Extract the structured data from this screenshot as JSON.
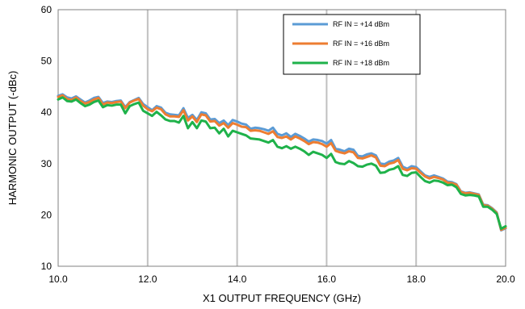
{
  "chart_data": {
    "type": "line",
    "title": "",
    "xlabel": "X1 OUTPUT FREQUENCY (GHz)",
    "ylabel": "HARMONIC OUTPUT (-dBc)",
    "xlim": [
      10.0,
      20.0
    ],
    "ylim": [
      10,
      60
    ],
    "xticks": [
      10.0,
      12.0,
      14.0,
      16.0,
      18.0,
      20.0
    ],
    "xtick_labels": [
      "10.0",
      "12.0",
      "14.0",
      "16.0",
      "18.0",
      "20.0"
    ],
    "yticks": [
      10,
      20,
      30,
      40,
      50,
      60
    ],
    "ytick_labels": [
      "10",
      "20",
      "30",
      "40",
      "50",
      "60"
    ],
    "grid": "vertical",
    "legend_position": "top-right",
    "x": [
      10.0,
      10.1,
      10.2,
      10.3,
      10.4,
      10.5,
      10.6,
      10.7,
      10.8,
      10.9,
      11.0,
      11.1,
      11.2,
      11.3,
      11.4,
      11.5,
      11.6,
      11.7,
      11.8,
      11.9,
      12.0,
      12.1,
      12.2,
      12.3,
      12.4,
      12.5,
      12.6,
      12.7,
      12.8,
      12.9,
      13.0,
      13.1,
      13.2,
      13.3,
      13.4,
      13.5,
      13.6,
      13.7,
      13.8,
      13.9,
      14.0,
      14.1,
      14.2,
      14.3,
      14.4,
      14.5,
      14.6,
      14.7,
      14.8,
      14.9,
      15.0,
      15.1,
      15.2,
      15.3,
      15.4,
      15.5,
      15.6,
      15.7,
      15.8,
      15.9,
      16.0,
      16.1,
      16.2,
      16.3,
      16.4,
      16.5,
      16.6,
      16.7,
      16.8,
      16.9,
      17.0,
      17.1,
      17.2,
      17.3,
      17.4,
      17.5,
      17.6,
      17.7,
      17.8,
      17.9,
      18.0,
      18.1,
      18.2,
      18.3,
      18.4,
      18.5,
      18.6,
      18.7,
      18.8,
      18.9,
      19.0,
      19.1,
      19.2,
      19.3,
      19.4,
      19.5,
      19.6,
      19.7,
      19.8,
      19.9,
      20.0
    ],
    "series": [
      {
        "name": "RF IN = +14 dBm",
        "color": "#5b9bd5",
        "values": [
          43.2,
          43.5,
          42.9,
          42.7,
          43.1,
          42.5,
          41.9,
          42.3,
          42.8,
          43.0,
          41.8,
          42.1,
          42.0,
          42.2,
          42.3,
          41.0,
          42.0,
          42.4,
          42.8,
          41.6,
          41.0,
          40.4,
          41.2,
          40.9,
          39.9,
          39.6,
          39.5,
          39.4,
          40.8,
          38.9,
          39.5,
          38.5,
          40.0,
          39.8,
          38.6,
          38.7,
          37.9,
          38.4,
          37.5,
          38.5,
          38.2,
          37.8,
          37.6,
          36.8,
          37.0,
          36.9,
          36.7,
          36.4,
          37.0,
          35.8,
          35.5,
          35.9,
          35.2,
          35.8,
          35.4,
          34.9,
          34.3,
          34.7,
          34.6,
          34.4,
          33.9,
          34.6,
          32.9,
          32.7,
          32.4,
          32.9,
          32.7,
          31.5,
          31.4,
          31.8,
          32.0,
          31.6,
          30.0,
          29.9,
          30.4,
          30.6,
          31.1,
          29.4,
          29.0,
          29.5,
          29.3,
          28.5,
          27.7,
          27.4,
          27.7,
          27.4,
          27.1,
          26.5,
          26.4,
          26.0,
          24.6,
          24.3,
          24.4,
          24.2,
          24.0,
          22.0,
          21.9,
          21.3,
          20.5,
          17.0,
          17.4
        ]
      },
      {
        "name": "RF IN = +16 dBm",
        "color": "#ed7d31",
        "values": [
          43.0,
          43.3,
          42.6,
          42.4,
          42.9,
          42.2,
          41.7,
          42.0,
          42.5,
          42.8,
          41.5,
          41.9,
          41.8,
          42.0,
          42.1,
          40.8,
          41.9,
          42.3,
          42.6,
          41.3,
          40.6,
          40.2,
          40.9,
          40.6,
          39.6,
          39.2,
          39.2,
          39.1,
          40.4,
          38.4,
          39.2,
          38.1,
          39.6,
          39.4,
          38.2,
          38.3,
          37.4,
          37.9,
          37.0,
          37.9,
          37.6,
          37.2,
          37.1,
          36.4,
          36.5,
          36.4,
          36.1,
          35.8,
          36.3,
          35.2,
          35.0,
          35.3,
          34.7,
          35.3,
          34.9,
          34.4,
          33.8,
          34.2,
          34.1,
          33.8,
          33.3,
          34.0,
          32.5,
          32.2,
          32.0,
          32.4,
          32.2,
          31.1,
          31.0,
          31.3,
          31.6,
          31.2,
          29.6,
          29.5,
          30.0,
          30.2,
          30.7,
          29.0,
          28.7,
          29.1,
          29.0,
          28.2,
          27.5,
          27.1,
          27.4,
          27.2,
          26.9,
          26.3,
          26.2,
          25.9,
          24.5,
          24.2,
          24.3,
          24.1,
          23.9,
          21.9,
          21.8,
          21.2,
          20.4,
          17.1,
          17.5
        ]
      },
      {
        "name": "RF IN = +18 dBm",
        "color": "#1fb24a",
        "values": [
          42.5,
          42.9,
          42.2,
          42.1,
          42.5,
          41.8,
          41.2,
          41.5,
          42.0,
          42.3,
          41.0,
          41.4,
          41.3,
          41.5,
          41.5,
          39.8,
          41.2,
          41.6,
          41.9,
          40.3,
          39.8,
          39.3,
          40.1,
          39.4,
          38.6,
          38.3,
          38.3,
          38.0,
          39.3,
          36.9,
          38.1,
          36.9,
          38.4,
          38.2,
          36.9,
          37.0,
          35.9,
          36.8,
          35.3,
          36.4,
          36.1,
          35.8,
          35.5,
          34.9,
          34.8,
          34.7,
          34.4,
          34.1,
          34.6,
          33.3,
          33.0,
          33.4,
          32.9,
          33.3,
          32.9,
          32.4,
          31.7,
          32.3,
          32.0,
          31.7,
          31.1,
          31.9,
          30.3,
          30.0,
          29.9,
          30.5,
          30.1,
          29.5,
          29.4,
          29.8,
          30.0,
          29.6,
          28.2,
          28.3,
          28.8,
          29.0,
          29.5,
          27.8,
          27.6,
          28.2,
          28.3,
          27.4,
          26.6,
          26.3,
          26.7,
          26.6,
          26.3,
          25.8,
          25.9,
          25.4,
          24.1,
          23.8,
          23.9,
          23.8,
          23.6,
          21.6,
          21.6,
          21.0,
          20.2,
          17.3,
          17.8
        ]
      }
    ]
  }
}
